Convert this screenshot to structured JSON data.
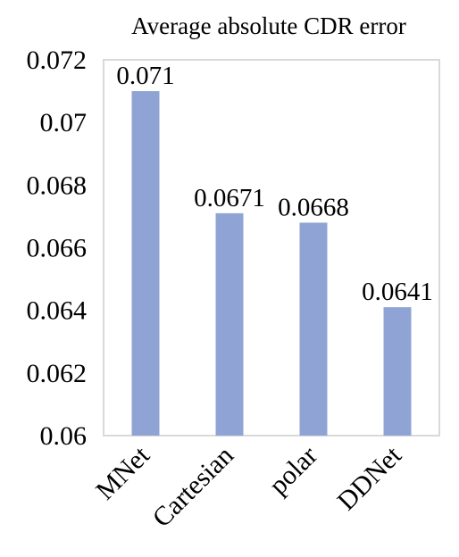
{
  "chart_data": {
    "type": "bar",
    "title": "Average absolute CDR error",
    "categories": [
      "MNet",
      "Cartesian",
      "polar",
      "DDNet"
    ],
    "values": [
      0.071,
      0.0671,
      0.0668,
      0.0641
    ],
    "value_labels": [
      "0.071",
      "0.0671",
      "0.0668",
      "0.0641"
    ],
    "xlabel": "",
    "ylabel": "",
    "ylim": [
      0.06,
      0.072
    ],
    "yticks": [
      0.06,
      0.062,
      0.064,
      0.066,
      0.068,
      0.07,
      0.072
    ],
    "ytick_labels": [
      "0.06",
      "0.062",
      "0.064",
      "0.066",
      "0.068",
      "0.07",
      "0.072"
    ],
    "grid": false,
    "legend": "none",
    "bar_color": "#8FA4D4"
  }
}
